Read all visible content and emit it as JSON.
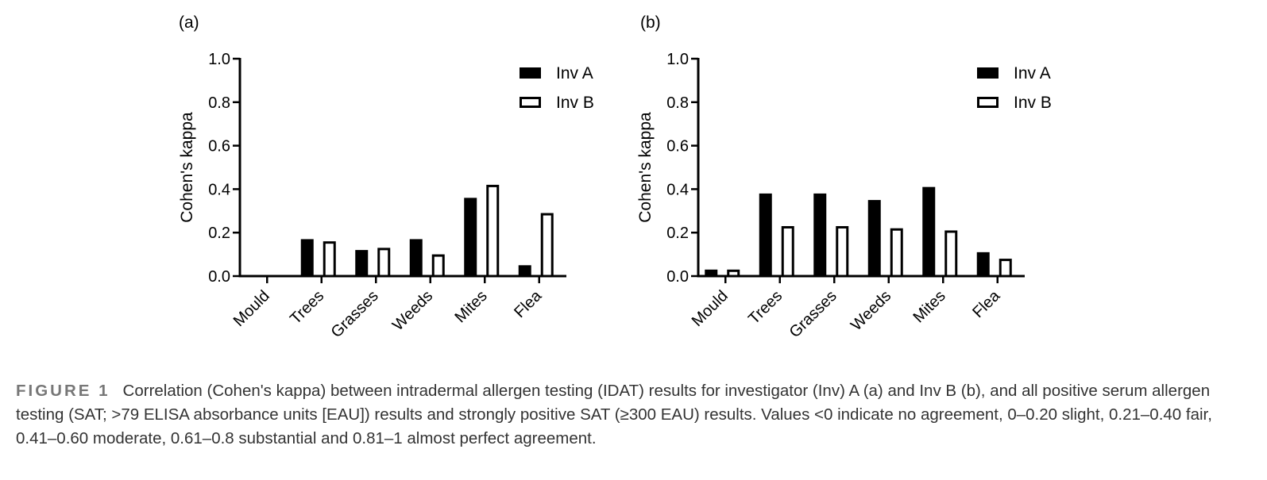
{
  "chart_data": [
    {
      "type": "bar",
      "panel_label": "(a)",
      "categories": [
        "Mould",
        "Trees",
        "Grasses",
        "Weeds",
        "Mites",
        "Flea"
      ],
      "series": [
        {
          "name": "Inv A",
          "values": [
            0.0,
            0.17,
            0.12,
            0.17,
            0.36,
            0.05
          ]
        },
        {
          "name": "Inv B",
          "values": [
            0.0,
            0.16,
            0.13,
            0.1,
            0.42,
            0.29
          ]
        }
      ],
      "ylabel": "Cohen's kappa",
      "xlabel": "",
      "ylim": [
        0,
        1.0
      ],
      "yticks": [
        "0.0",
        "0.2",
        "0.4",
        "0.6",
        "0.8",
        "1.0"
      ],
      "legend_position": "top-right"
    },
    {
      "type": "bar",
      "panel_label": "(b)",
      "categories": [
        "Mould",
        "Trees",
        "Grasses",
        "Weeds",
        "Mites",
        "Flea"
      ],
      "series": [
        {
          "name": "Inv A",
          "values": [
            0.03,
            0.38,
            0.38,
            0.35,
            0.41,
            0.11
          ]
        },
        {
          "name": "Inv B",
          "values": [
            0.03,
            0.23,
            0.23,
            0.22,
            0.21,
            0.08
          ]
        }
      ],
      "ylabel": "Cohen's kappa",
      "xlabel": "",
      "ylim": [
        0,
        1.0
      ],
      "yticks": [
        "0.0",
        "0.2",
        "0.4",
        "0.6",
        "0.8",
        "1.0"
      ],
      "legend_position": "top-right"
    }
  ],
  "caption": {
    "label": "FIGURE 1",
    "text": "Correlation (Cohen's kappa) between intradermal allergen testing (IDAT) results for investigator (Inv) A (a) and Inv B (b), and all positive serum allergen testing (SAT; >79 ELISA absorbance units [EAU]) results and strongly positive SAT (≥300 EAU) results. Values <0 indicate no agreement, 0–0.20 slight, 0.21–0.40 fair, 0.41–0.60 moderate, 0.61–0.8 substantial and 0.81–1 almost perfect agreement."
  }
}
